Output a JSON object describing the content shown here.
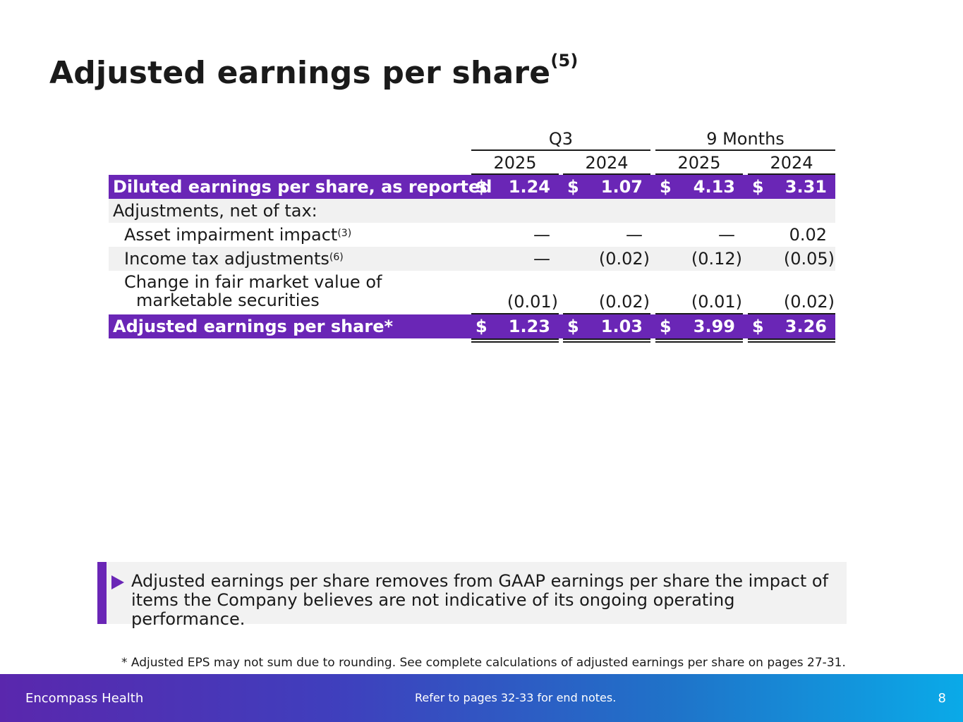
{
  "title": {
    "text": "Adjusted earnings per share",
    "note": "(5)"
  },
  "table": {
    "groups": [
      {
        "label": "Q3"
      },
      {
        "label": "9 Months"
      }
    ],
    "years": [
      "2025",
      "2024",
      "2025",
      "2024"
    ],
    "currency_symbol": "$",
    "rows": [
      {
        "label": "Diluted earnings per share, as reported",
        "note": "",
        "values": [
          "1.24",
          "1.07",
          "4.13",
          "3.31"
        ]
      },
      {
        "label": "Adjustments, net of tax:",
        "note": "",
        "values": [
          "",
          "",
          "",
          ""
        ]
      },
      {
        "label": "Asset impairment impact",
        "note": "(3)",
        "values": [
          "—",
          "—",
          "—",
          "0.02"
        ]
      },
      {
        "label": "Income tax adjustments",
        "note": "(6)",
        "values": [
          "—",
          "(0.02)",
          "(0.12)",
          "(0.05)"
        ]
      },
      {
        "label_line1": "Change in fair market value of",
        "label_line2": "marketable securities",
        "values": [
          "(0.01)",
          "(0.02)",
          "(0.01)",
          "(0.02)"
        ]
      },
      {
        "label": "Adjusted earnings per share*",
        "note": "",
        "values": [
          "1.23",
          "1.03",
          "3.99",
          "3.26"
        ]
      }
    ]
  },
  "callout": {
    "text": "Adjusted earnings per share removes from GAAP earnings per share the impact of items the Company believes are not indicative of its ongoing operating performance."
  },
  "footnote": "*  Adjusted EPS may not sum due to rounding. See complete calculations of adjusted earnings per share on pages 27-31.",
  "footer": {
    "company": "Encompass Health",
    "refer": "Refer to pages 32-33 for end notes.",
    "page": "8"
  },
  "colors": {
    "accent": "#6a26b6",
    "band": "#f1f1f1"
  }
}
